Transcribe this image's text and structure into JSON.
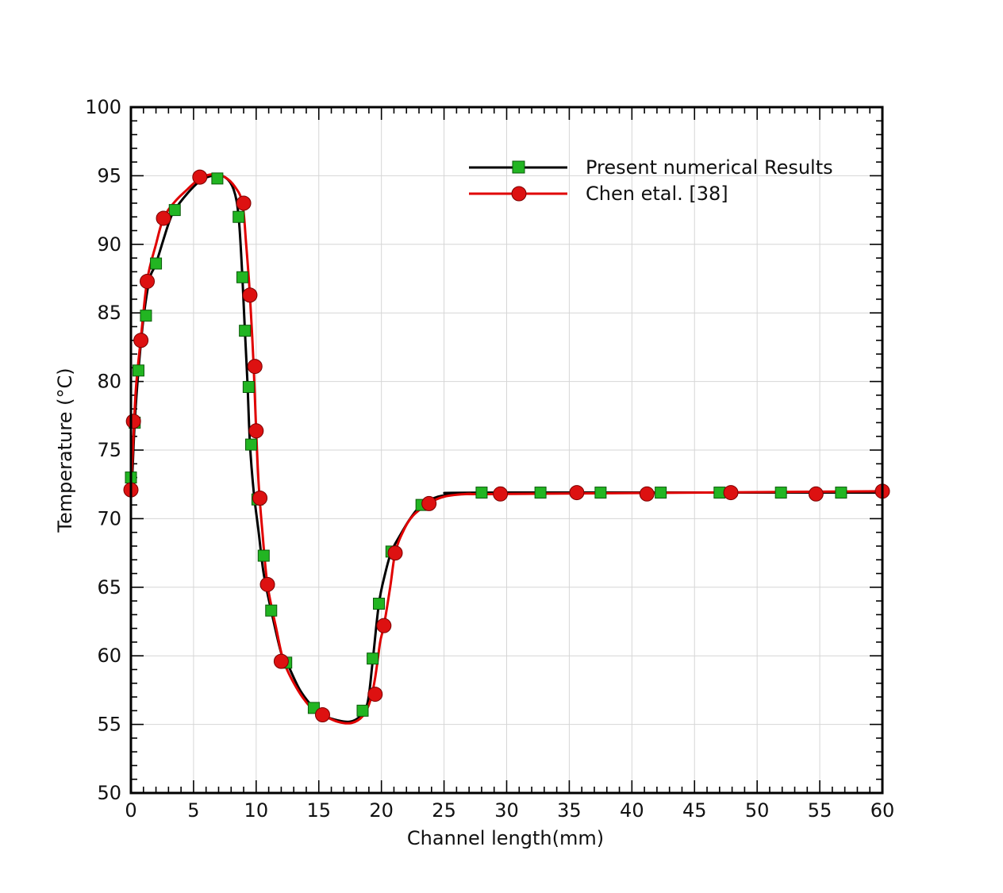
{
  "chart_data": {
    "type": "line",
    "title": "",
    "xlabel": "Channel length(mm)",
    "ylabel": "Temperature (°C)",
    "xlim": [
      0,
      60
    ],
    "ylim": [
      50,
      100
    ],
    "x_ticks": [
      0,
      5,
      10,
      15,
      20,
      25,
      30,
      35,
      40,
      45,
      50,
      55,
      60
    ],
    "y_ticks": [
      50,
      55,
      60,
      65,
      70,
      75,
      80,
      85,
      90,
      95,
      100
    ],
    "x_tick_labels": [
      "0",
      "5",
      "10",
      "15",
      "20",
      "25",
      "30",
      "35",
      "40",
      "45",
      "50",
      "55",
      "60"
    ],
    "y_tick_labels": [
      "50",
      "55",
      "60",
      "65",
      "70",
      "75",
      "80",
      "85",
      "90",
      "95",
      "100"
    ],
    "grid": true,
    "legend_position": "top-right",
    "series": [
      {
        "name": "Present numerical Results",
        "color": "#000000",
        "marker": "square",
        "marker_color": "#22b522",
        "curve": [
          [
            0,
            72
          ],
          [
            0.1,
            73
          ],
          [
            0.3,
            77
          ],
          [
            0.6,
            80.8
          ],
          [
            1.0,
            84.6
          ],
          [
            1.5,
            87.5
          ],
          [
            2.0,
            88.6
          ],
          [
            3.0,
            91.5
          ],
          [
            3.5,
            92.5
          ],
          [
            4.5,
            93.7
          ],
          [
            5.5,
            94.6
          ],
          [
            6.5,
            95.0
          ],
          [
            7.5,
            94.9
          ],
          [
            8.2,
            94.0
          ],
          [
            8.6,
            92.0
          ],
          [
            8.9,
            87.6
          ],
          [
            9.1,
            83.7
          ],
          [
            9.3,
            80.0
          ],
          [
            9.5,
            75.5
          ],
          [
            9.8,
            72.0
          ],
          [
            10.2,
            69.0
          ],
          [
            10.6,
            66.0
          ],
          [
            11.2,
            63.3
          ],
          [
            12.0,
            60.2
          ],
          [
            12.5,
            59.4
          ],
          [
            13.5,
            57.5
          ],
          [
            14.6,
            56.2
          ],
          [
            15.5,
            55.6
          ],
          [
            16.5,
            55.3
          ],
          [
            17.5,
            55.2
          ],
          [
            18.3,
            55.6
          ],
          [
            18.9,
            56.6
          ],
          [
            19.3,
            59.6
          ],
          [
            19.8,
            63.8
          ],
          [
            20.3,
            66.0
          ],
          [
            20.8,
            67.6
          ],
          [
            21.5,
            68.8
          ],
          [
            22.3,
            70.0
          ],
          [
            23.2,
            71.0
          ],
          [
            24.5,
            71.6
          ],
          [
            26,
            71.8
          ],
          [
            28,
            71.9
          ],
          [
            60,
            71.9
          ]
        ],
        "markers": [
          [
            0,
            73
          ],
          [
            0.3,
            77
          ],
          [
            0.6,
            80.8
          ],
          [
            1.2,
            84.8
          ],
          [
            2.0,
            88.6
          ],
          [
            3.5,
            92.5
          ],
          [
            6.9,
            94.8
          ],
          [
            8.6,
            92.0
          ],
          [
            8.9,
            87.6
          ],
          [
            9.1,
            83.7
          ],
          [
            9.4,
            79.6
          ],
          [
            9.6,
            75.4
          ],
          [
            10.1,
            71.4
          ],
          [
            10.6,
            67.3
          ],
          [
            11.2,
            63.3
          ],
          [
            12.4,
            59.5
          ],
          [
            14.6,
            56.2
          ],
          [
            18.5,
            56.0
          ],
          [
            19.3,
            59.8
          ],
          [
            19.8,
            63.8
          ],
          [
            20.8,
            67.6
          ],
          [
            23.2,
            71.0
          ],
          [
            28.0,
            71.9
          ],
          [
            32.7,
            71.9
          ],
          [
            37.5,
            71.9
          ],
          [
            42.3,
            71.9
          ],
          [
            47.0,
            71.9
          ],
          [
            51.9,
            71.9
          ],
          [
            56.7,
            71.9
          ]
        ]
      },
      {
        "name": "Chen etal. [38]",
        "color": "#e00000",
        "marker": "circle",
        "marker_color": "#dd1111",
        "curve": [
          [
            0,
            72
          ],
          [
            0.15,
            75.0
          ],
          [
            0.4,
            79.5
          ],
          [
            0.8,
            83.2
          ],
          [
            1.3,
            87.4
          ],
          [
            2.0,
            90.0
          ],
          [
            2.6,
            91.9
          ],
          [
            3.5,
            93.1
          ],
          [
            4.5,
            94.0
          ],
          [
            5.5,
            94.8
          ],
          [
            6.5,
            95.1
          ],
          [
            7.5,
            94.9
          ],
          [
            8.3,
            94.2
          ],
          [
            8.9,
            93.0
          ],
          [
            9.2,
            90.0
          ],
          [
            9.5,
            86.3
          ],
          [
            9.8,
            81.1
          ],
          [
            10.0,
            76.4
          ],
          [
            10.2,
            72.5
          ],
          [
            10.5,
            69.0
          ],
          [
            10.9,
            65.2
          ],
          [
            11.6,
            62.0
          ],
          [
            12.2,
            59.6
          ],
          [
            13.2,
            57.7
          ],
          [
            14.3,
            56.3
          ],
          [
            15.3,
            55.7
          ],
          [
            16.5,
            55.2
          ],
          [
            17.6,
            55.1
          ],
          [
            18.5,
            55.6
          ],
          [
            19.1,
            56.7
          ],
          [
            19.5,
            58.4
          ],
          [
            19.9,
            61.0
          ],
          [
            20.2,
            62.2
          ],
          [
            20.7,
            65.0
          ],
          [
            21.1,
            67.5
          ],
          [
            21.7,
            69.0
          ],
          [
            22.5,
            70.2
          ],
          [
            23.8,
            71.1
          ],
          [
            25,
            71.6
          ],
          [
            27,
            71.8
          ],
          [
            30,
            71.8
          ],
          [
            60,
            72.0
          ]
        ],
        "markers": [
          [
            0,
            72.1
          ],
          [
            0.2,
            77.1
          ],
          [
            0.8,
            83.0
          ],
          [
            1.3,
            87.3
          ],
          [
            2.6,
            91.9
          ],
          [
            5.5,
            94.9
          ],
          [
            9.0,
            93.0
          ],
          [
            9.5,
            86.3
          ],
          [
            9.9,
            81.1
          ],
          [
            10.0,
            76.4
          ],
          [
            10.3,
            71.5
          ],
          [
            10.9,
            65.2
          ],
          [
            12.0,
            59.6
          ],
          [
            15.3,
            55.7
          ],
          [
            19.5,
            57.2
          ],
          [
            20.2,
            62.2
          ],
          [
            21.1,
            67.5
          ],
          [
            23.8,
            71.1
          ],
          [
            29.5,
            71.8
          ],
          [
            35.6,
            71.9
          ],
          [
            41.2,
            71.8
          ],
          [
            47.9,
            71.9
          ],
          [
            54.7,
            71.8
          ],
          [
            60.0,
            72.0
          ]
        ]
      }
    ]
  }
}
